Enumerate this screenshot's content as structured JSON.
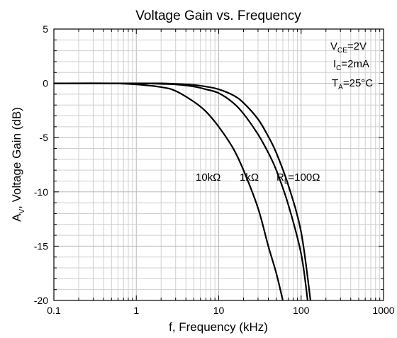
{
  "chart_data": {
    "type": "line",
    "title": "Voltage Gain vs. Frequency",
    "xlabel": "f, Frequency (kHz)",
    "ylabel_main": "A",
    "ylabel_sub": "V",
    "ylabel_rest": ", Voltage Gain (dB)",
    "xscale": "log",
    "xlim": [
      0.1,
      1000
    ],
    "ylim": [
      -20,
      5
    ],
    "x_ticks": [
      0.1,
      1,
      10,
      100,
      1000
    ],
    "x_tick_labels": [
      "0.1",
      "1",
      "10",
      "100",
      "1000"
    ],
    "y_ticks": [
      5,
      0,
      -5,
      -10,
      -15,
      -20
    ],
    "y_tick_labels": [
      "5",
      "0",
      "-5",
      "-10",
      "-15",
      "-20"
    ],
    "grid": true,
    "conditions": [
      {
        "main": "V",
        "sub": "CE",
        "rest": "=2V"
      },
      {
        "main": "I",
        "sub": "C",
        "rest": "=2mA"
      },
      {
        "main": "T",
        "sub": "A",
        "rest": "=25°C"
      }
    ],
    "series": [
      {
        "name": "10kΩ",
        "x": [
          0.1,
          0.5,
          1,
          2,
          3,
          5,
          7,
          10,
          15,
          20,
          30,
          40,
          50,
          60
        ],
        "y": [
          0,
          0,
          -0.1,
          -0.35,
          -0.7,
          -1.7,
          -2.6,
          -4.0,
          -6.0,
          -8.0,
          -11.5,
          -15.0,
          -17.5,
          -20.0
        ]
      },
      {
        "name": "1kΩ",
        "x": [
          0.1,
          1,
          2,
          3,
          5,
          7,
          10,
          15,
          20,
          30,
          40,
          50,
          70,
          100,
          120
        ],
        "y": [
          0,
          0,
          -0.05,
          -0.1,
          -0.3,
          -0.55,
          -0.9,
          -1.8,
          -2.8,
          -4.7,
          -6.4,
          -8.0,
          -11.2,
          -15.7,
          -20.0
        ]
      },
      {
        "name_main": "R",
        "name_sub": "L",
        "name_rest": "=100Ω",
        "x": [
          0.1,
          1,
          2,
          3,
          5,
          7,
          10,
          15,
          20,
          30,
          40,
          50,
          70,
          100,
          130
        ],
        "y": [
          0,
          0,
          0,
          -0.05,
          -0.15,
          -0.3,
          -0.55,
          -1.1,
          -1.8,
          -3.3,
          -4.9,
          -6.4,
          -9.4,
          -13.7,
          -20.0
        ]
      }
    ]
  }
}
